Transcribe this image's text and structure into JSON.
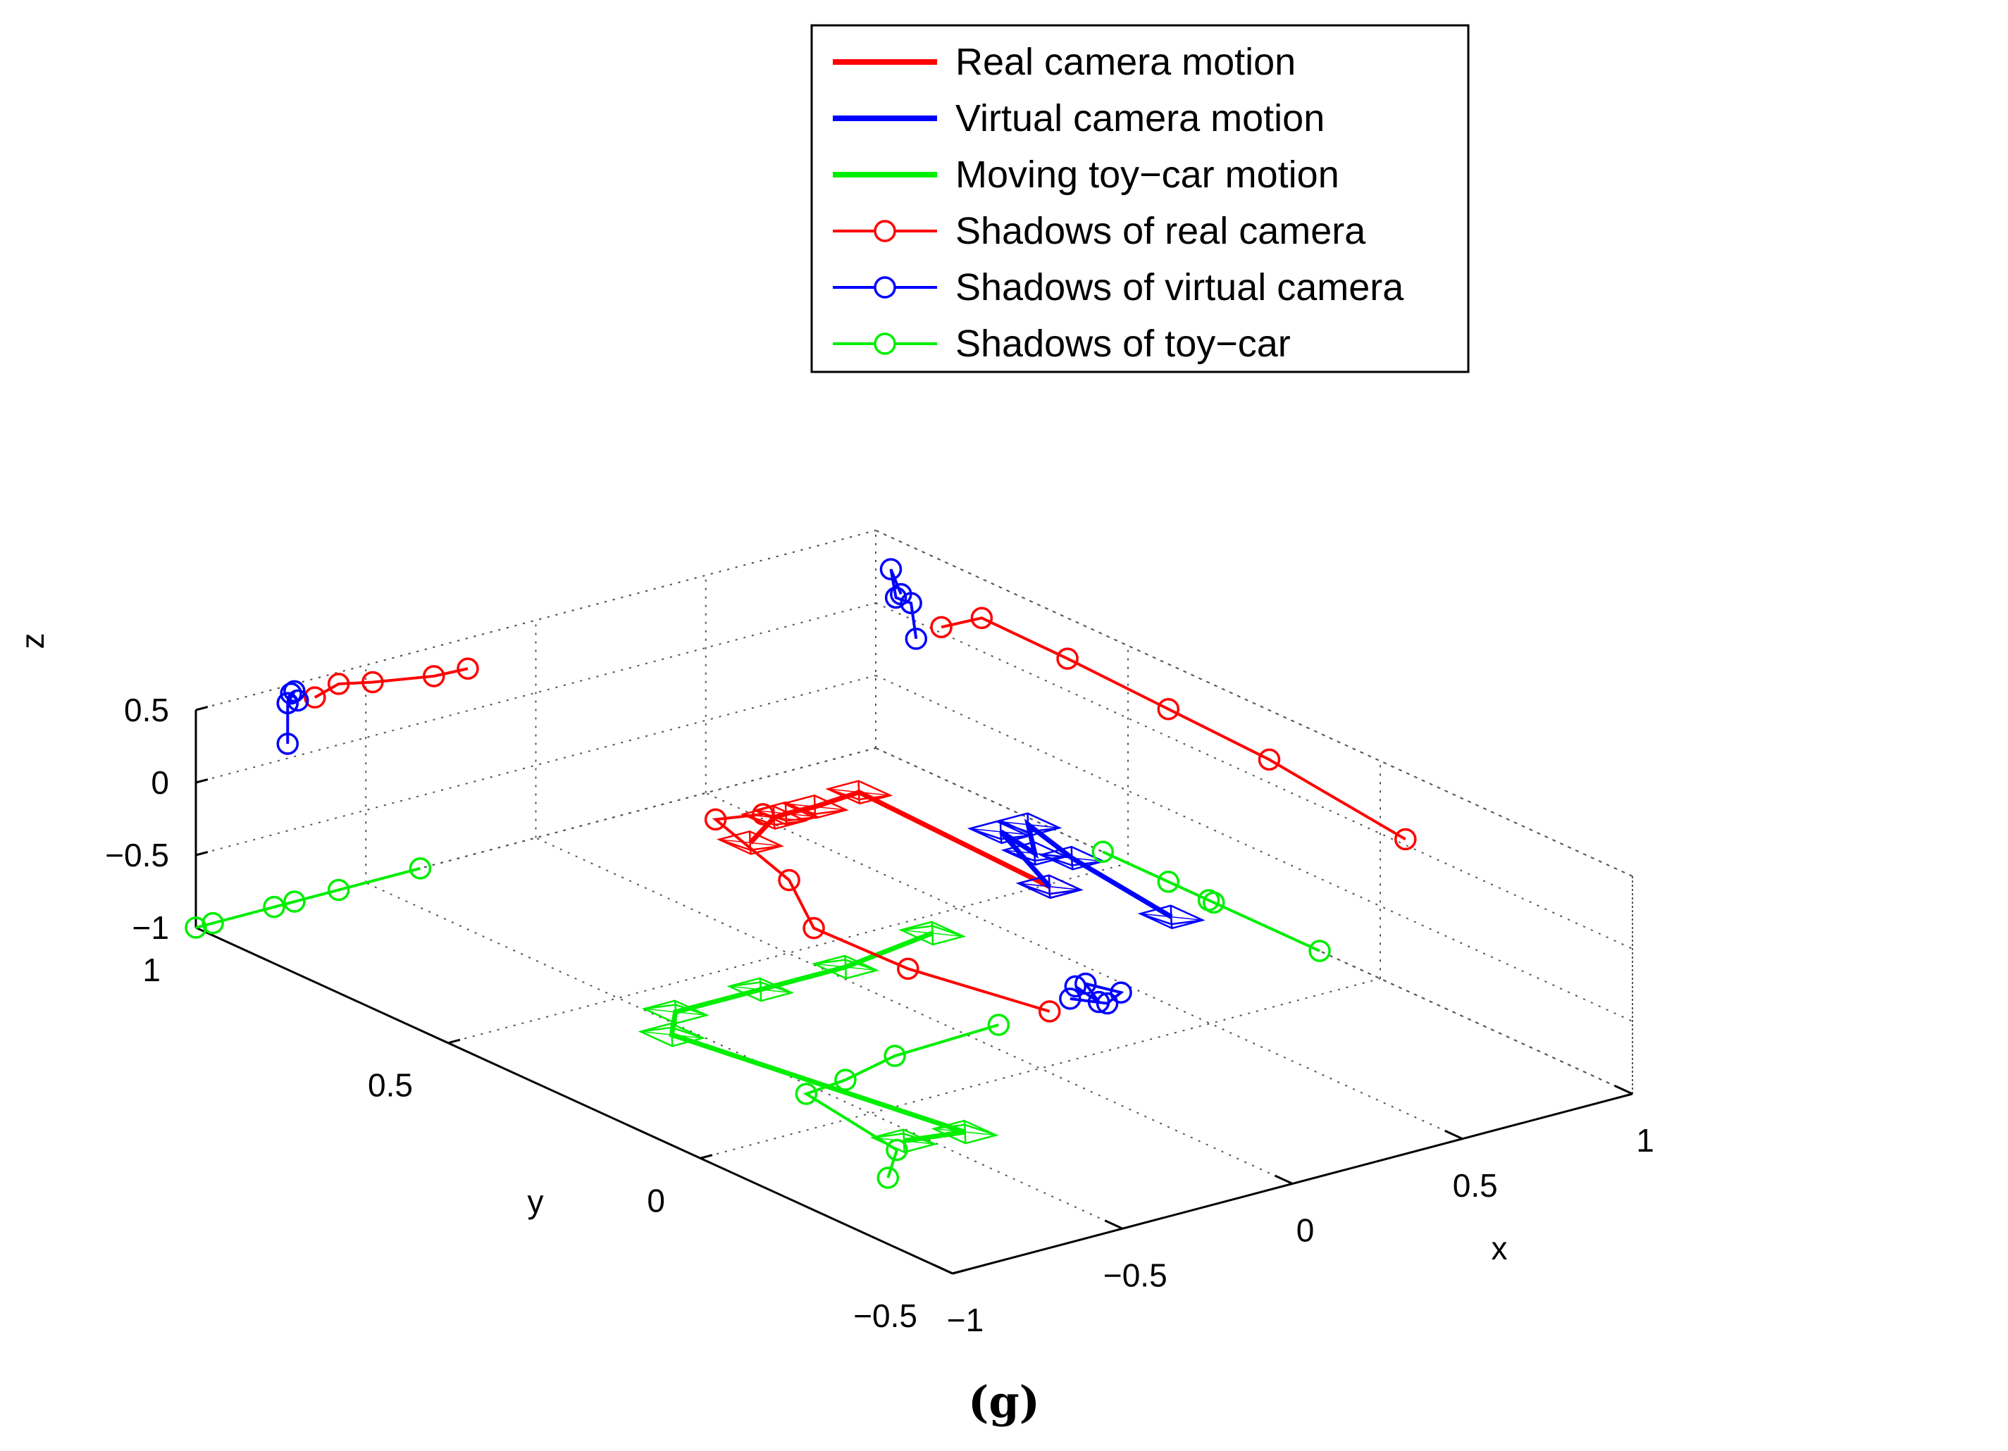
{
  "chart_data": {
    "type": "line3d",
    "caption": "(g)",
    "xlabel": "x",
    "ylabel": "y",
    "zlabel": "z",
    "xlim": [
      -1,
      1
    ],
    "ylim": [
      -0.5,
      1
    ],
    "zlim": [
      -1,
      0.5
    ],
    "xticks": [
      {
        "v": -1,
        "label": "−1"
      },
      {
        "v": -0.5,
        "label": "−0.5"
      },
      {
        "v": 0,
        "label": "0"
      },
      {
        "v": 0.5,
        "label": "0.5"
      },
      {
        "v": 1,
        "label": "1"
      }
    ],
    "yticks": [
      {
        "v": -0.5,
        "label": "−0.5"
      },
      {
        "v": 0,
        "label": "0"
      },
      {
        "v": 0.5,
        "label": "0.5"
      },
      {
        "v": 1,
        "label": "1"
      }
    ],
    "zticks": [
      {
        "v": -1,
        "label": "−1"
      },
      {
        "v": -0.5,
        "label": "−0.5"
      },
      {
        "v": 0,
        "label": "0"
      },
      {
        "v": 0.5,
        "label": "0.5"
      }
    ],
    "grid": true,
    "colors": {
      "red": "#ff0000",
      "blue": "#0000ff",
      "green": "#00ee00",
      "axis": "#000000",
      "grid": "#555555"
    },
    "legend": [
      {
        "label": "Real camera motion",
        "color": "#ff0000",
        "style": "line"
      },
      {
        "label": "Virtual camera motion",
        "color": "#0000ff",
        "style": "line"
      },
      {
        "label": "Moving toy−car motion",
        "color": "#00ee00",
        "style": "line"
      },
      {
        "label": "Shadows of real camera",
        "color": "#ff0000",
        "style": "line-marker"
      },
      {
        "label": "Shadows of virtual camera",
        "color": "#0000ff",
        "style": "line-marker"
      },
      {
        "label": "Shadows of toy−car",
        "color": "#00ee00",
        "style": "line-marker"
      }
    ],
    "series": [
      {
        "name": "Real camera motion",
        "color": "#ff0000",
        "kind": "camera",
        "points": [
          [
            -0.2,
            0.44,
            -0.02
          ],
          [
            -0.1,
            0.46,
            0.06
          ],
          [
            -0.05,
            0.47,
            0.04
          ],
          [
            0.02,
            0.46,
            0.06
          ],
          [
            0.12,
            0.44,
            0.13
          ],
          [
            0.25,
            0.15,
            -0.14
          ]
        ]
      },
      {
        "name": "Virtual camera motion",
        "color": "#0000ff",
        "kind": "camera",
        "points": [
          [
            0.25,
            0.15,
            -0.14
          ],
          [
            0.3,
            0.28,
            0.0
          ],
          [
            0.34,
            0.24,
            -0.11
          ],
          [
            0.38,
            0.28,
            0.0
          ],
          [
            0.42,
            0.22,
            -0.16
          ],
          [
            0.46,
            0.05,
            -0.32
          ]
        ]
      },
      {
        "name": "Moving toy−car motion",
        "color": "#00ee00",
        "kind": "camera",
        "points": [
          [
            -0.55,
            -0.1,
            -1
          ],
          [
            -0.4,
            -0.12,
            -1
          ],
          [
            -0.55,
            0.36,
            -1
          ],
          [
            -0.45,
            0.42,
            -1
          ],
          [
            -0.2,
            0.42,
            -1
          ],
          [
            0.05,
            0.42,
            -1
          ],
          [
            0.35,
            0.45,
            -1
          ]
        ]
      },
      {
        "name": "Shadows of real camera",
        "color": "#ff0000",
        "kind": "shadow",
        "points": [
          [
            1,
            0.87,
            0.04
          ],
          [
            1,
            0.79,
            0.23
          ],
          [
            1,
            0.62,
            0.22
          ],
          [
            1,
            0.42,
            0.19
          ],
          [
            1,
            0.22,
            0.16
          ],
          [
            1,
            -0.05,
            0.04
          ],
          [
            -0.2,
            1,
            0.29
          ],
          [
            -0.3,
            1,
            0.3
          ],
          [
            -0.48,
            1,
            0.37
          ],
          [
            -0.58,
            1,
            0.42
          ],
          [
            -0.65,
            1,
            0.37
          ],
          [
            0.52,
            0.9,
            -1
          ],
          [
            0.41,
            0.92,
            -1
          ],
          [
            0.3,
            0.7,
            -1
          ],
          [
            0.15,
            0.55,
            -1
          ],
          [
            0.16,
            0.37,
            -1
          ],
          [
            0.25,
            0.15,
            -1
          ]
        ]
      },
      {
        "name": "Shadows of virtual camera",
        "color": "#0000ff",
        "kind": "shadow",
        "points": [
          [
            1,
            0.95,
            0.14
          ],
          [
            1,
            0.97,
            0.28
          ],
          [
            1,
            0.96,
            0.1
          ],
          [
            1,
            0.93,
            0.11
          ],
          [
            1,
            0.92,
            -0.12
          ],
          [
            -0.73,
            1,
            0.38
          ],
          [
            -0.71,
            1,
            0.45
          ],
          [
            -0.72,
            1,
            0.44
          ],
          [
            -0.7,
            1,
            0.38
          ],
          [
            -0.73,
            1,
            0.38
          ],
          [
            -0.73,
            1,
            0.1
          ],
          [
            0.4,
            0.2,
            -1
          ],
          [
            0.38,
            0.14,
            -1
          ],
          [
            0.43,
            0.2,
            -1
          ],
          [
            0.46,
            0.15,
            -1
          ],
          [
            0.39,
            0.13,
            -1
          ],
          [
            0.34,
            0.17,
            -1
          ]
        ]
      },
      {
        "name": "Shadows of toy−car",
        "color": "#00ee00",
        "kind": "shadow",
        "points": [
          [
            1,
            0.55,
            -1
          ],
          [
            1,
            0.42,
            -1
          ],
          [
            1,
            0.33,
            -1
          ],
          [
            1,
            0.34,
            -1
          ],
          [
            1,
            0.12,
            -1
          ],
          [
            -0.34,
            1,
            -1
          ],
          [
            -0.58,
            1,
            -1
          ],
          [
            -0.71,
            1,
            -1
          ],
          [
            -0.77,
            1,
            -1
          ],
          [
            -0.95,
            1,
            -1
          ],
          [
            -1,
            1,
            -1
          ],
          [
            -0.73,
            -0.19,
            -1
          ],
          [
            -0.6,
            -0.12,
            -1
          ],
          [
            -0.54,
            0.1,
            -1
          ],
          [
            -0.41,
            0.11,
            -1
          ],
          [
            -0.22,
            0.14,
            -1
          ],
          [
            0.1,
            0.15,
            -1
          ]
        ]
      }
    ]
  }
}
